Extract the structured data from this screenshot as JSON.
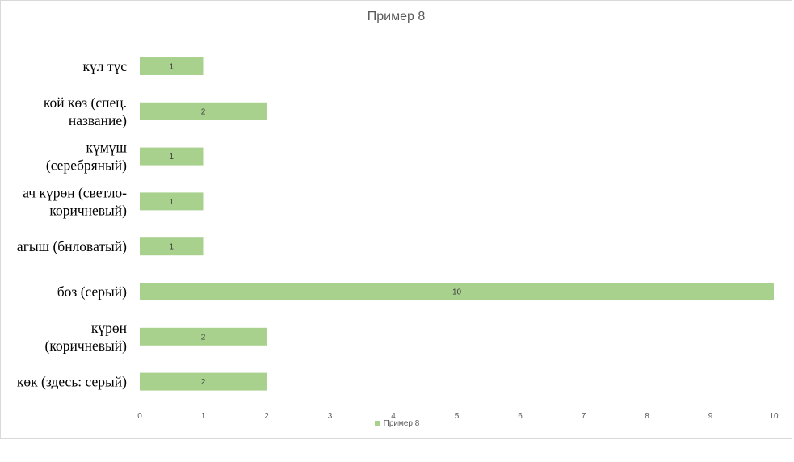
{
  "chart_data": {
    "type": "bar",
    "orientation": "horizontal",
    "title": "Пример 8",
    "categories": [
      "күл түс",
      "кой көз (спец. название)",
      "күмүш (серебряный)",
      "ач күрөн (светло-коричневый)",
      "агыш (бнловатый)",
      "боз (серый)",
      "күрөн (коричневый)",
      "көк (здесь: серый)"
    ],
    "category_display_lines": [
      [
        "күл түс"
      ],
      [
        "кой көз (спец.",
        "название)"
      ],
      [
        "күмүш",
        "(серебряный)"
      ],
      [
        "ач күрөн (светло-",
        "коричневый)"
      ],
      [
        "агыш (бнловатый)"
      ],
      [
        "боз (серый)"
      ],
      [
        "күрөн",
        "(коричневый)"
      ],
      [
        "көк (здесь: серый)"
      ]
    ],
    "series": [
      {
        "name": "Пример 8",
        "values": [
          1,
          2,
          1,
          1,
          1,
          10,
          2,
          2
        ],
        "color": "#a9d18e"
      }
    ],
    "xlim": [
      0,
      10
    ],
    "x_ticks": [
      "0",
      "1",
      "2",
      "3",
      "4",
      "5",
      "6",
      "7",
      "8",
      "9",
      "10"
    ],
    "grid": false,
    "data_labels": true,
    "legend_position": "bottom"
  }
}
